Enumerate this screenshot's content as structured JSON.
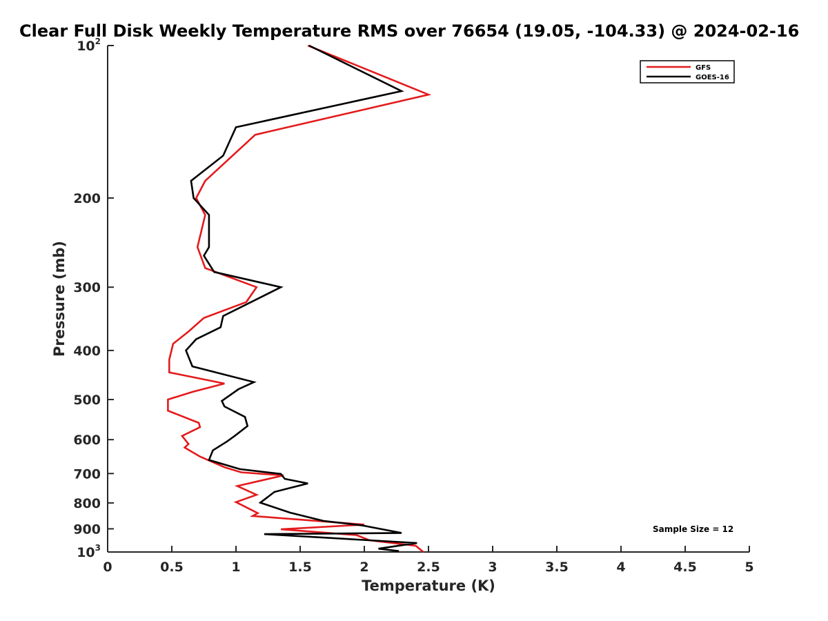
{
  "chart_data": {
    "type": "line",
    "title": "Clear Full Disk Weekly Temperature RMS over 76654 (19.05, -104.33) @ 2024-02-16",
    "xlabel": "Temperature (K)",
    "ylabel": "Pressure (mb)",
    "xlim": [
      0,
      5
    ],
    "ylim": [
      100,
      1000
    ],
    "yscale": "log",
    "y_reversed": true,
    "x_ticks": [
      0,
      0.5,
      1,
      1.5,
      2,
      2.5,
      3,
      3.5,
      4,
      4.5,
      5
    ],
    "x_tick_labels": [
      "0",
      "0.5",
      "1",
      "1.5",
      "2",
      "2.5",
      "3",
      "3.5",
      "4",
      "4.5",
      "5"
    ],
    "y_ticks": [
      100,
      200,
      300,
      400,
      500,
      600,
      700,
      800,
      900,
      1000
    ],
    "y_tick_labels": [
      {
        "base": "10",
        "sup": "2"
      },
      {
        "base": "200",
        "sup": ""
      },
      {
        "base": "300",
        "sup": ""
      },
      {
        "base": "400",
        "sup": ""
      },
      {
        "base": "500",
        "sup": ""
      },
      {
        "base": "600",
        "sup": ""
      },
      {
        "base": "700",
        "sup": ""
      },
      {
        "base": "800",
        "sup": ""
      },
      {
        "base": "900",
        "sup": ""
      },
      {
        "base": "10",
        "sup": "3"
      }
    ],
    "series": [
      {
        "name": "GFS",
        "color": "#e41a1c",
        "points": [
          [
            1.56,
            100
          ],
          [
            2.5,
            125
          ],
          [
            1.15,
            150
          ],
          [
            0.76,
            185
          ],
          [
            0.69,
            200
          ],
          [
            0.76,
            216
          ],
          [
            0.7,
            250
          ],
          [
            0.76,
            275
          ],
          [
            1.16,
            300
          ],
          [
            1.08,
            321
          ],
          [
            0.75,
            345
          ],
          [
            0.63,
            367
          ],
          [
            0.51,
            388
          ],
          [
            0.48,
            417
          ],
          [
            0.48,
            442
          ],
          [
            0.91,
            465
          ],
          [
            0.66,
            483
          ],
          [
            0.47,
            500
          ],
          [
            0.47,
            526
          ],
          [
            0.71,
            556
          ],
          [
            0.72,
            567
          ],
          [
            0.58,
            590
          ],
          [
            0.63,
            612
          ],
          [
            0.6,
            622
          ],
          [
            0.72,
            648
          ],
          [
            0.91,
            680
          ],
          [
            1.04,
            696
          ],
          [
            1.37,
            706
          ],
          [
            1.01,
            741
          ],
          [
            1.16,
            771
          ],
          [
            1.0,
            797
          ],
          [
            1.17,
            838
          ],
          [
            1.13,
            849
          ],
          [
            2.0,
            883
          ],
          [
            1.35,
            902
          ],
          [
            1.94,
            926
          ],
          [
            2.04,
            948
          ],
          [
            2.4,
            972
          ],
          [
            2.46,
            1000
          ]
        ]
      },
      {
        "name": "GOES-16",
        "color": "#000000",
        "points": [
          [
            1.57,
            100
          ],
          [
            2.29,
            123
          ],
          [
            1.0,
            145
          ],
          [
            0.9,
            165
          ],
          [
            0.65,
            185
          ],
          [
            0.67,
            200
          ],
          [
            0.79,
            216
          ],
          [
            0.79,
            250
          ],
          [
            0.75,
            260
          ],
          [
            0.83,
            280
          ],
          [
            1.35,
            300
          ],
          [
            0.9,
            342
          ],
          [
            0.88,
            360
          ],
          [
            0.69,
            380
          ],
          [
            0.61,
            400
          ],
          [
            0.66,
            430
          ],
          [
            1.14,
            462
          ],
          [
            1.02,
            477
          ],
          [
            0.89,
            503
          ],
          [
            0.91,
            516
          ],
          [
            1.07,
            541
          ],
          [
            1.09,
            564
          ],
          [
            0.99,
            590
          ],
          [
            0.93,
            605
          ],
          [
            0.82,
            630
          ],
          [
            0.79,
            658
          ],
          [
            1.03,
            686
          ],
          [
            1.35,
            701
          ],
          [
            1.38,
            717
          ],
          [
            1.56,
            732
          ],
          [
            1.3,
            761
          ],
          [
            1.19,
            799
          ],
          [
            1.42,
            836
          ],
          [
            1.68,
            868
          ],
          [
            1.98,
            886
          ],
          [
            2.29,
            917
          ],
          [
            1.22,
            922
          ],
          [
            2.04,
            948
          ],
          [
            2.41,
            960
          ],
          [
            2.11,
            985
          ],
          [
            2.27,
            996
          ]
        ]
      }
    ],
    "legend": {
      "placement": "top-right",
      "entries": [
        "GFS",
        "GOES-16"
      ]
    },
    "annotations": [
      "Sample Size = 12"
    ],
    "grid": false
  }
}
